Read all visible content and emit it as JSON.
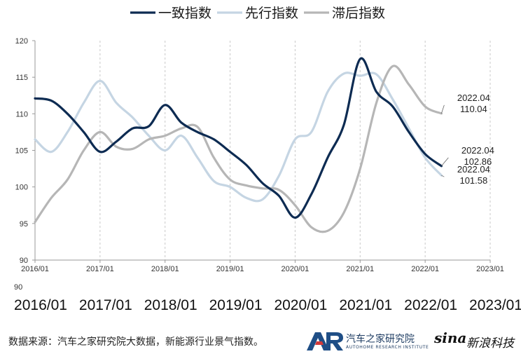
{
  "chart_data": {
    "type": "line",
    "ylim": [
      90,
      120
    ],
    "yticks": [
      90,
      95,
      100,
      105,
      110,
      115,
      120
    ],
    "xlim": [
      "2016/01",
      "2023/01"
    ],
    "xticks": [
      "2016/01",
      "2017/01",
      "2018/01",
      "2019/01",
      "2020/01",
      "2021/01",
      "2022/01",
      "2023/01"
    ],
    "grid": {
      "vertical": true,
      "horizontal": false
    },
    "legend_position": "top",
    "series": [
      {
        "name": "一致指数",
        "color": "#0d2b52",
        "points": [
          [
            "2016/01",
            112.1
          ],
          [
            "2016/04",
            111.8
          ],
          [
            "2016/07",
            110.0
          ],
          [
            "2016/10",
            107.5
          ],
          [
            "2017/01",
            104.8
          ],
          [
            "2017/04",
            106.2
          ],
          [
            "2017/07",
            108.0
          ],
          [
            "2017/10",
            108.3
          ],
          [
            "2018/01",
            111.2
          ],
          [
            "2018/04",
            108.8
          ],
          [
            "2018/07",
            107.5
          ],
          [
            "2018/10",
            106.5
          ],
          [
            "2019/01",
            104.8
          ],
          [
            "2019/04",
            103.0
          ],
          [
            "2019/07",
            100.5
          ],
          [
            "2019/10",
            98.8
          ],
          [
            "2020/01",
            95.8
          ],
          [
            "2020/04",
            99.0
          ],
          [
            "2020/07",
            104.0
          ],
          [
            "2020/10",
            108.5
          ],
          [
            "2021/01",
            117.5
          ],
          [
            "2021/04",
            113.0
          ],
          [
            "2021/07",
            111.0
          ],
          [
            "2021/10",
            107.5
          ],
          [
            "2022/01",
            104.5
          ],
          [
            "2022/04",
            102.86
          ]
        ]
      },
      {
        "name": "先行指数",
        "color": "#c5d5e3",
        "points": [
          [
            "2016/01",
            106.5
          ],
          [
            "2016/04",
            104.8
          ],
          [
            "2016/07",
            107.5
          ],
          [
            "2016/10",
            111.5
          ],
          [
            "2017/01",
            114.5
          ],
          [
            "2017/04",
            111.5
          ],
          [
            "2017/07",
            109.5
          ],
          [
            "2017/10",
            107.0
          ],
          [
            "2018/01",
            105.0
          ],
          [
            "2018/04",
            107.0
          ],
          [
            "2018/07",
            104.0
          ],
          [
            "2018/10",
            100.8
          ],
          [
            "2019/01",
            100.0
          ],
          [
            "2019/04",
            98.5
          ],
          [
            "2019/07",
            98.3
          ],
          [
            "2019/10",
            101.5
          ],
          [
            "2020/01",
            106.5
          ],
          [
            "2020/04",
            107.5
          ],
          [
            "2020/07",
            113.0
          ],
          [
            "2020/10",
            115.5
          ],
          [
            "2021/01",
            115.2
          ],
          [
            "2021/04",
            115.4
          ],
          [
            "2021/07",
            112.0
          ],
          [
            "2021/10",
            108.0
          ],
          [
            "2022/01",
            104.0
          ],
          [
            "2022/04",
            101.58
          ]
        ]
      },
      {
        "name": "滞后指数",
        "color": "#b6b6b6",
        "points": [
          [
            "2016/01",
            95.2
          ],
          [
            "2016/04",
            98.5
          ],
          [
            "2016/07",
            101.0
          ],
          [
            "2016/10",
            105.0
          ],
          [
            "2017/01",
            107.5
          ],
          [
            "2017/04",
            105.5
          ],
          [
            "2017/07",
            105.2
          ],
          [
            "2017/10",
            106.5
          ],
          [
            "2018/01",
            107.0
          ],
          [
            "2018/04",
            108.0
          ],
          [
            "2018/07",
            108.2
          ],
          [
            "2018/10",
            104.0
          ],
          [
            "2019/01",
            101.0
          ],
          [
            "2019/04",
            100.2
          ],
          [
            "2019/07",
            99.8
          ],
          [
            "2019/10",
            99.6
          ],
          [
            "2020/01",
            97.5
          ],
          [
            "2020/04",
            94.5
          ],
          [
            "2020/07",
            94.0
          ],
          [
            "2020/10",
            96.5
          ],
          [
            "2021/01",
            102.5
          ],
          [
            "2021/04",
            111.5
          ],
          [
            "2021/07",
            116.5
          ],
          [
            "2021/10",
            114.0
          ],
          [
            "2022/01",
            111.0
          ],
          [
            "2022/04",
            110.04
          ]
        ]
      }
    ],
    "annotations": [
      {
        "series": "滞后指数",
        "date_text": "2022.04",
        "value_text": "110.04"
      },
      {
        "series": "一致指数",
        "date_text": "2022.04",
        "value_text": "102.86"
      },
      {
        "series": "先行指数",
        "date_text": "2022.04",
        "value_text": "101.58"
      }
    ],
    "overflow_axis_labels": [
      "2016/01",
      "2017/01",
      "2018/01",
      "2019/01",
      "2020/01",
      "2021/01",
      "2022/01",
      "2023/01"
    ]
  },
  "footer": {
    "source_text": "数据来源：汽车之家研究院大数据，新能源行业景气指数。",
    "autohome_name": "汽车之家研究院",
    "autohome_sub": "AUTOHOME RESEARCH INSTITUTE",
    "autohome_mark": "AR",
    "sina_mark": "sina",
    "sina_name": "新浪科技"
  }
}
